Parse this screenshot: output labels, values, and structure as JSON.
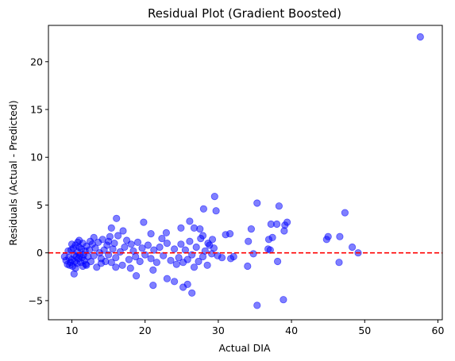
{
  "chart_data": {
    "type": "scatter",
    "title": "Residual Plot (Gradient Boosted)",
    "xlabel": "Actual DIA",
    "ylabel": "Residuals (Actual - Predicted)",
    "xlim": [
      6.8,
      60.6
    ],
    "ylim": [
      -7.0,
      23.8
    ],
    "xticks": [
      10,
      20,
      30,
      40,
      50,
      60
    ],
    "yticks": [
      -5,
      0,
      5,
      10,
      15,
      20
    ],
    "point_color": "#0000ff",
    "point_alpha": 0.5,
    "reference_line": {
      "y": 0,
      "color": "#ff0000",
      "style": "dashed"
    },
    "points": [
      [
        57.6,
        22.6
      ],
      [
        29.5,
        5.9
      ],
      [
        35.3,
        5.2
      ],
      [
        38.3,
        4.9
      ],
      [
        29.7,
        4.4
      ],
      [
        47.3,
        4.2
      ],
      [
        28.0,
        4.6
      ],
      [
        39.4,
        3.2
      ],
      [
        37.2,
        3.0
      ],
      [
        38.0,
        3.0
      ],
      [
        39.1,
        2.9
      ],
      [
        39.0,
        2.3
      ],
      [
        34.5,
        2.5
      ],
      [
        37.4,
        1.6
      ],
      [
        36.9,
        1.4
      ],
      [
        34.1,
        1.2
      ],
      [
        45.0,
        1.7
      ],
      [
        46.6,
        1.7
      ],
      [
        44.8,
        1.4
      ],
      [
        48.3,
        0.6
      ],
      [
        49.1,
        0.0
      ],
      [
        46.5,
        -1.0
      ],
      [
        38.1,
        -0.9
      ],
      [
        34.0,
        -1.4
      ],
      [
        35.3,
        -5.5
      ],
      [
        38.9,
        -4.9
      ],
      [
        36.8,
        0.4
      ],
      [
        34.8,
        -0.1
      ],
      [
        37.1,
        0.3
      ],
      [
        16.1,
        3.6
      ],
      [
        19.8,
        3.2
      ],
      [
        15.4,
        2.6
      ],
      [
        20.8,
        2.0
      ],
      [
        22.9,
        2.1
      ],
      [
        22.3,
        1.5
      ],
      [
        26.1,
        3.3
      ],
      [
        26.7,
        2.6
      ],
      [
        27.5,
        2.5
      ],
      [
        24.9,
        2.6
      ],
      [
        21.1,
        -3.4
      ],
      [
        26.4,
        -4.2
      ],
      [
        25.8,
        -3.3
      ],
      [
        25.2,
        -3.6
      ],
      [
        24.0,
        -3.0
      ],
      [
        23.0,
        -2.7
      ],
      [
        18.8,
        -2.4
      ],
      [
        21.1,
        -1.8
      ],
      [
        10.3,
        -2.2
      ],
      [
        31.0,
        1.9
      ],
      [
        31.6,
        2.0
      ],
      [
        29.2,
        1.4
      ],
      [
        27.9,
        1.8
      ],
      [
        28.6,
        1.0
      ],
      [
        31.7,
        -0.6
      ],
      [
        32.1,
        -0.4
      ],
      [
        30.5,
        -0.5
      ],
      [
        29.9,
        -0.3
      ],
      [
        9.0,
        -0.4
      ],
      [
        9.2,
        -0.8
      ],
      [
        9.4,
        -1.2
      ],
      [
        9.5,
        0.2
      ],
      [
        9.6,
        -0.5
      ],
      [
        9.8,
        -1.0
      ],
      [
        9.9,
        0.3
      ],
      [
        10.0,
        -0.7
      ],
      [
        10.1,
        -1.4
      ],
      [
        10.2,
        0.5
      ],
      [
        10.3,
        -0.2
      ],
      [
        10.4,
        -0.9
      ],
      [
        10.5,
        0.8
      ],
      [
        10.6,
        -0.4
      ],
      [
        10.7,
        -1.1
      ],
      [
        10.8,
        0.1
      ],
      [
        10.9,
        -0.6
      ],
      [
        11.0,
        0.6
      ],
      [
        11.1,
        -0.3
      ],
      [
        11.2,
        -1.0
      ],
      [
        11.3,
        0.4
      ],
      [
        11.4,
        -0.5
      ],
      [
        11.5,
        1.0
      ],
      [
        11.6,
        -0.2
      ],
      [
        11.7,
        -0.8
      ],
      [
        11.8,
        0.2
      ],
      [
        11.9,
        -1.2
      ],
      [
        12.0,
        0.7
      ],
      [
        12.2,
        -0.4
      ],
      [
        12.4,
        0.3
      ],
      [
        12.6,
        -0.9
      ],
      [
        12.8,
        0.9
      ],
      [
        13.0,
        -0.3
      ],
      [
        13.2,
        0.5
      ],
      [
        13.4,
        -1.5
      ],
      [
        13.6,
        1.1
      ],
      [
        13.8,
        0.0
      ],
      [
        14.0,
        -0.6
      ],
      [
        14.2,
        1.4
      ],
      [
        14.4,
        0.3
      ],
      [
        14.6,
        -0.9
      ],
      [
        14.8,
        0.8
      ],
      [
        15.0,
        -0.2
      ],
      [
        15.2,
        1.7
      ],
      [
        15.4,
        -1.0
      ],
      [
        15.6,
        0.4
      ],
      [
        15.8,
        1.0
      ],
      [
        16.0,
        -0.5
      ],
      [
        16.3,
        1.8
      ],
      [
        16.6,
        0.1
      ],
      [
        16.9,
        -1.3
      ],
      [
        17.2,
        0.6
      ],
      [
        17.5,
        1.3
      ],
      [
        17.8,
        -0.7
      ],
      [
        18.1,
        0.9
      ],
      [
        18.4,
        0.2
      ],
      [
        18.7,
        -0.4
      ],
      [
        19.0,
        1.1
      ],
      [
        19.3,
        -0.9
      ],
      [
        19.6,
        0.5
      ],
      [
        20.0,
        -0.2
      ],
      [
        20.4,
        0.8
      ],
      [
        20.8,
        -0.6
      ],
      [
        21.2,
        0.3
      ],
      [
        21.6,
        -1.0
      ],
      [
        22.0,
        0.6
      ],
      [
        22.5,
        -0.3
      ],
      [
        23.0,
        1.0
      ],
      [
        23.5,
        -0.8
      ],
      [
        24.0,
        0.4
      ],
      [
        24.3,
        -1.2
      ],
      [
        24.6,
        -0.5
      ],
      [
        24.9,
        0.9
      ],
      [
        25.2,
        -1.0
      ],
      [
        25.5,
        0.3
      ],
      [
        25.8,
        -0.7
      ],
      [
        26.1,
        1.2
      ],
      [
        26.4,
        -0.2
      ],
      [
        26.7,
        -1.5
      ],
      [
        27.0,
        0.6
      ],
      [
        27.3,
        -0.9
      ],
      [
        27.6,
        1.5
      ],
      [
        27.9,
        -0.4
      ],
      [
        28.2,
        0.2
      ],
      [
        28.5,
        -1.3
      ],
      [
        28.8,
        0.8
      ],
      [
        29.1,
        -0.1
      ],
      [
        29.4,
        0.5
      ],
      [
        10.0,
        0.9
      ],
      [
        10.5,
        -1.6
      ],
      [
        11.0,
        1.3
      ],
      [
        12.0,
        -1.3
      ],
      [
        13.0,
        1.6
      ],
      [
        14.0,
        -1.1
      ],
      [
        15.0,
        1.2
      ],
      [
        16.0,
        -1.5
      ],
      [
        17.0,
        2.3
      ],
      [
        18.0,
        -1.6
      ],
      [
        12.5,
        1.2
      ],
      [
        11.5,
        -1.4
      ],
      [
        9.7,
        -1.3
      ],
      [
        10.8,
        1.1
      ]
    ]
  }
}
